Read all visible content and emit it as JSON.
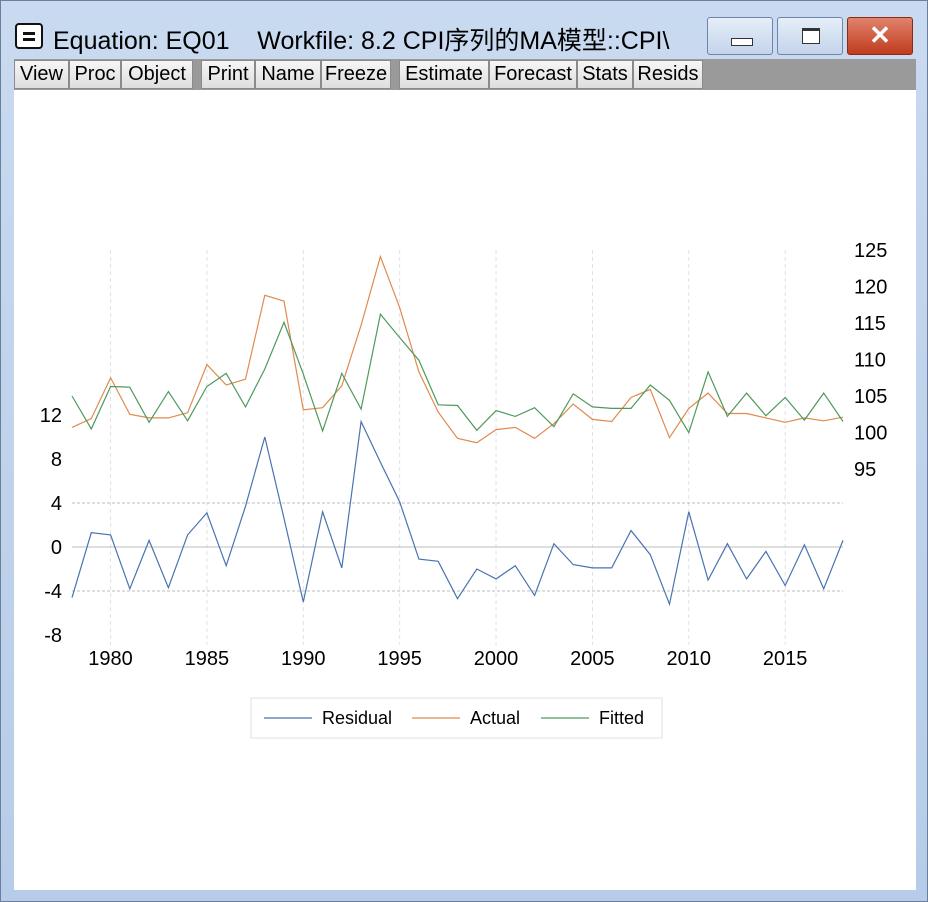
{
  "window": {
    "title": "Equation: EQ01    Workfile: 8.2 CPI序列的MA模型::CPI\\",
    "close_glyph": "✕"
  },
  "toolbar": {
    "buttons": [
      "View",
      "Proc",
      "Object",
      "Print",
      "Name",
      "Freeze",
      "Estimate",
      "Forecast",
      "Stats",
      "Resids"
    ]
  },
  "colors": {
    "residual": "#4a72b0",
    "actual": "#e08a4f",
    "fitted": "#4e9a5c"
  },
  "chart_data": {
    "type": "line",
    "x": [
      1978,
      1979,
      1980,
      1981,
      1982,
      1983,
      1984,
      1985,
      1986,
      1987,
      1988,
      1989,
      1990,
      1991,
      1992,
      1993,
      1994,
      1995,
      1996,
      1997,
      1998,
      1999,
      2000,
      2001,
      2002,
      2003,
      2004,
      2005,
      2006,
      2007,
      2008,
      2009,
      2010,
      2011,
      2012,
      2013,
      2014,
      2015,
      2016,
      2017,
      2018
    ],
    "xticks": [
      1980,
      1985,
      1990,
      1995,
      2000,
      2005,
      2010,
      2015
    ],
    "left_axis": {
      "ticks": [
        12,
        8,
        4,
        0,
        -4,
        -8
      ],
      "range": [
        -8,
        12
      ]
    },
    "right_axis": {
      "ticks": [
        125,
        120,
        115,
        110,
        105,
        100,
        95
      ],
      "range": [
        95,
        125
      ]
    },
    "series": [
      {
        "name": "Residual",
        "axis": "left",
        "values": [
          -4.6,
          1.3,
          1.1,
          -3.8,
          0.6,
          -3.7,
          1.1,
          3.1,
          -1.7,
          3.7,
          10.0,
          2.6,
          -5.0,
          3.2,
          -1.9,
          11.4,
          7.7,
          4.1,
          -1.1,
          -1.3,
          -4.7,
          -2.0,
          -2.9,
          -1.7,
          -4.4,
          0.3,
          -1.6,
          -1.9,
          -1.9,
          1.5,
          -0.7,
          -5.2,
          3.2,
          -3.0,
          0.3,
          -2.9,
          -0.4,
          -3.5,
          0.2,
          -3.8,
          0.6
        ]
      },
      {
        "name": "Actual",
        "axis": "right",
        "values": [
          100.7,
          101.9,
          107.5,
          102.5,
          102.0,
          102.0,
          102.7,
          109.3,
          106.5,
          107.3,
          118.8,
          118.0,
          103.1,
          103.4,
          106.4,
          114.7,
          124.1,
          117.1,
          108.3,
          102.8,
          99.2,
          98.6,
          100.4,
          100.7,
          99.2,
          101.2,
          103.9,
          101.8,
          101.5,
          104.8,
          105.9,
          99.3,
          103.3,
          105.4,
          102.6,
          102.6,
          102.0,
          101.4,
          102.0,
          101.6,
          102.1
        ]
      },
      {
        "name": "Fitted",
        "axis": "right",
        "values": [
          105.0,
          100.5,
          106.3,
          106.2,
          101.4,
          105.6,
          101.6,
          106.3,
          108.1,
          103.5,
          108.7,
          115.1,
          108.0,
          100.2,
          108.1,
          103.2,
          116.2,
          113.0,
          109.9,
          103.8,
          103.7,
          100.3,
          103.0,
          102.2,
          103.4,
          100.8,
          105.3,
          103.5,
          103.3,
          103.3,
          106.5,
          104.4,
          100.0,
          108.3,
          102.2,
          105.4,
          102.3,
          104.8,
          101.7,
          105.4,
          101.5
        ]
      }
    ],
    "legend": [
      "Residual",
      "Actual",
      "Fitted"
    ],
    "legend_position": "bottom-center",
    "grid": true
  }
}
